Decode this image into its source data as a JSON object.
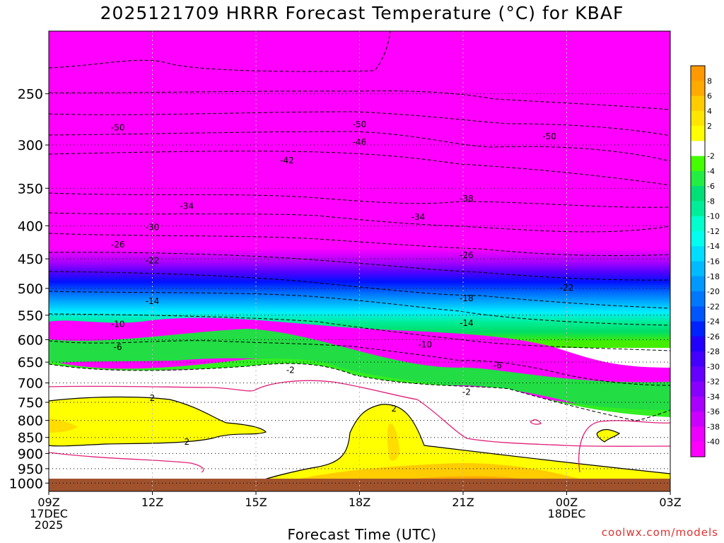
{
  "chart_data": {
    "type": "heatmap",
    "title": "2025121709 HRRR Forecast Temperature (°C) for KBAF",
    "xlabel": "Forecast Time (UTC)",
    "credit": "coolwx.com/models",
    "x_ticks": [
      {
        "hour": 0,
        "lines": [
          "09Z",
          "17DEC",
          "2025"
        ]
      },
      {
        "hour": 3,
        "lines": [
          "12Z"
        ]
      },
      {
        "hour": 6,
        "lines": [
          "15Z"
        ]
      },
      {
        "hour": 9,
        "lines": [
          "18Z"
        ]
      },
      {
        "hour": 12,
        "lines": [
          "21Z"
        ]
      },
      {
        "hour": 15,
        "lines": [
          "00Z",
          "18DEC"
        ]
      },
      {
        "hour": 18,
        "lines": [
          "03Z"
        ]
      }
    ],
    "xlim_hours": [
      0,
      18
    ],
    "y_ticks": [
      250,
      300,
      350,
      400,
      450,
      500,
      550,
      600,
      650,
      700,
      750,
      800,
      850,
      900,
      950,
      1000
    ],
    "y_scale": "log pressure (hPa), inverted",
    "ylim_hpa": [
      1030,
      200
    ],
    "grid": true,
    "colorbar": {
      "labels": [
        "8",
        "6",
        "4",
        "2",
        "-2",
        "-4",
        "-6",
        "-8",
        "-10",
        "-12",
        "-14",
        "-16",
        "-18",
        "-20",
        "-22",
        "-24",
        "-26",
        "-28",
        "-30",
        "-32",
        "-34",
        "-36",
        "-38",
        "-40"
      ],
      "colors": [
        "#ff9900",
        "#ffaa00",
        "#ffcc00",
        "#ffe600",
        "#ffff00",
        "#ffffff",
        "#44ff00",
        "#22ee44",
        "#00e077",
        "#00ee99",
        "#00ffcc",
        "#00ffee",
        "#00ddff",
        "#00bbff",
        "#0099ff",
        "#0077ff",
        "#0055ff",
        "#0022ff",
        "#2200ff",
        "#4400ff",
        "#6600ff",
        "#8800ff",
        "#aa00ff",
        "#cc00ff",
        "#ee00ff",
        "#ff00ff"
      ]
    },
    "contour_labels": [
      {
        "text": "-50",
        "hour": 2.0,
        "hpa": 282
      },
      {
        "text": "-50",
        "hour": 9.0,
        "hpa": 279
      },
      {
        "text": "-50",
        "hour": 14.5,
        "hpa": 291
      },
      {
        "text": "-46",
        "hour": 9.0,
        "hpa": 297
      },
      {
        "text": "-42",
        "hour": 6.9,
        "hpa": 317
      },
      {
        "text": "-38",
        "hour": 12.1,
        "hpa": 363
      },
      {
        "text": "-34",
        "hour": 4.0,
        "hpa": 373
      },
      {
        "text": "-34",
        "hour": 10.7,
        "hpa": 388
      },
      {
        "text": "-30",
        "hour": 3.0,
        "hpa": 402
      },
      {
        "text": "-26",
        "hour": 2.0,
        "hpa": 428
      },
      {
        "text": "-26",
        "hour": 12.1,
        "hpa": 444
      },
      {
        "text": "-22",
        "hour": 3.0,
        "hpa": 453
      },
      {
        "text": "-22",
        "hour": 15.0,
        "hpa": 499
      },
      {
        "text": "-18",
        "hour": 12.1,
        "hpa": 518
      },
      {
        "text": "-14",
        "hour": 3.0,
        "hpa": 523
      },
      {
        "text": "-14",
        "hour": 12.1,
        "hpa": 566
      },
      {
        "text": "-10",
        "hour": 2.0,
        "hpa": 568
      },
      {
        "text": "-10",
        "hour": 10.9,
        "hpa": 611
      },
      {
        "text": "-6",
        "hour": 2.0,
        "hpa": 616
      },
      {
        "text": "-6",
        "hour": 13.0,
        "hpa": 658
      },
      {
        "text": "-2",
        "hour": 7.0,
        "hpa": 669
      },
      {
        "text": "-2",
        "hour": 12.1,
        "hpa": 723
      },
      {
        "text": "2",
        "hour": 3.0,
        "hpa": 739
      },
      {
        "text": "2",
        "hour": 10.0,
        "hpa": 767
      },
      {
        "text": "2",
        "hour": 4.0,
        "hpa": 864
      }
    ]
  }
}
